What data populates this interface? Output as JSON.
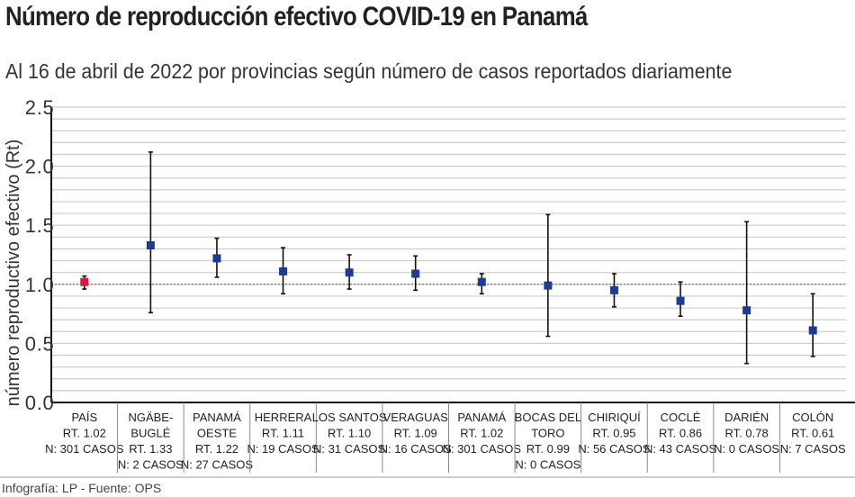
{
  "title": "Número de reproducción efectivo COVID-19 en Panamá",
  "subtitle": "Al 16 de abril de 2022 por provincias según número de casos reportados diariamente",
  "source": "Infografía: LP - Fuente: OPS",
  "chart_data": {
    "type": "scatter",
    "title": "Número de reproducción efectivo COVID-19 en Panamá",
    "ylabel": "número reproductivo efectivo (Rt)",
    "ylim": [
      0,
      2.5
    ],
    "yticks": [
      "0.0",
      "0.5",
      "1.0",
      "1.5",
      "2.0",
      "2.5"
    ],
    "grid": true,
    "reference_line": 1.0,
    "colors": {
      "highlight": "#e0173f",
      "point": "#1f3a93",
      "errorbar": "#111111",
      "grid": "#cccccc"
    },
    "categories": [
      {
        "lines": [
          "PAÍS",
          "RT. 1.02",
          "N: 301 CASOS"
        ],
        "rt": 1.02,
        "low": 0.96,
        "high": 1.07,
        "highlight": true
      },
      {
        "lines": [
          "NGÄBE-",
          "BUGLÉ",
          "RT. 1.33",
          "N: 2 CASOS"
        ],
        "rt": 1.33,
        "low": 0.76,
        "high": 2.12
      },
      {
        "lines": [
          "PANAMÁ",
          "OESTE",
          "RT. 1.22",
          "N: 27 CASOS"
        ],
        "rt": 1.22,
        "low": 1.06,
        "high": 1.39
      },
      {
        "lines": [
          "HERRERA",
          "RT. 1.11",
          "N: 19 CASOS"
        ],
        "rt": 1.11,
        "low": 0.92,
        "high": 1.31
      },
      {
        "lines": [
          "LOS SANTOS",
          "RT. 1.10",
          "N: 31 CASOS"
        ],
        "rt": 1.1,
        "low": 0.96,
        "high": 1.25
      },
      {
        "lines": [
          "VERAGUAS",
          "RT. 1.09",
          "N: 16 CASOS"
        ],
        "rt": 1.09,
        "low": 0.95,
        "high": 1.24
      },
      {
        "lines": [
          "PANAMÁ",
          "RT. 1.02",
          "N: 301 CASOS"
        ],
        "rt": 1.02,
        "low": 0.92,
        "high": 1.09
      },
      {
        "lines": [
          "BOCAS DEL",
          "TORO",
          "RT. 0.99",
          "N: 0 CASOS"
        ],
        "rt": 0.99,
        "low": 0.56,
        "high": 1.59
      },
      {
        "lines": [
          "CHIRIQUÍ",
          "RT. 0.95",
          "N: 56 CASOS"
        ],
        "rt": 0.95,
        "low": 0.81,
        "high": 1.09
      },
      {
        "lines": [
          "COCLÉ",
          "RT. 0.86",
          "N: 43 CASOS"
        ],
        "rt": 0.86,
        "low": 0.73,
        "high": 1.02
      },
      {
        "lines": [
          "DARIÉN",
          "RT. 0.78",
          "N: 0 CASOS"
        ],
        "rt": 0.78,
        "low": 0.33,
        "high": 1.53
      },
      {
        "lines": [
          "COLÓN",
          "RT. 0.61",
          "N: 7 CASOS"
        ],
        "rt": 0.61,
        "low": 0.39,
        "high": 0.92
      }
    ]
  }
}
